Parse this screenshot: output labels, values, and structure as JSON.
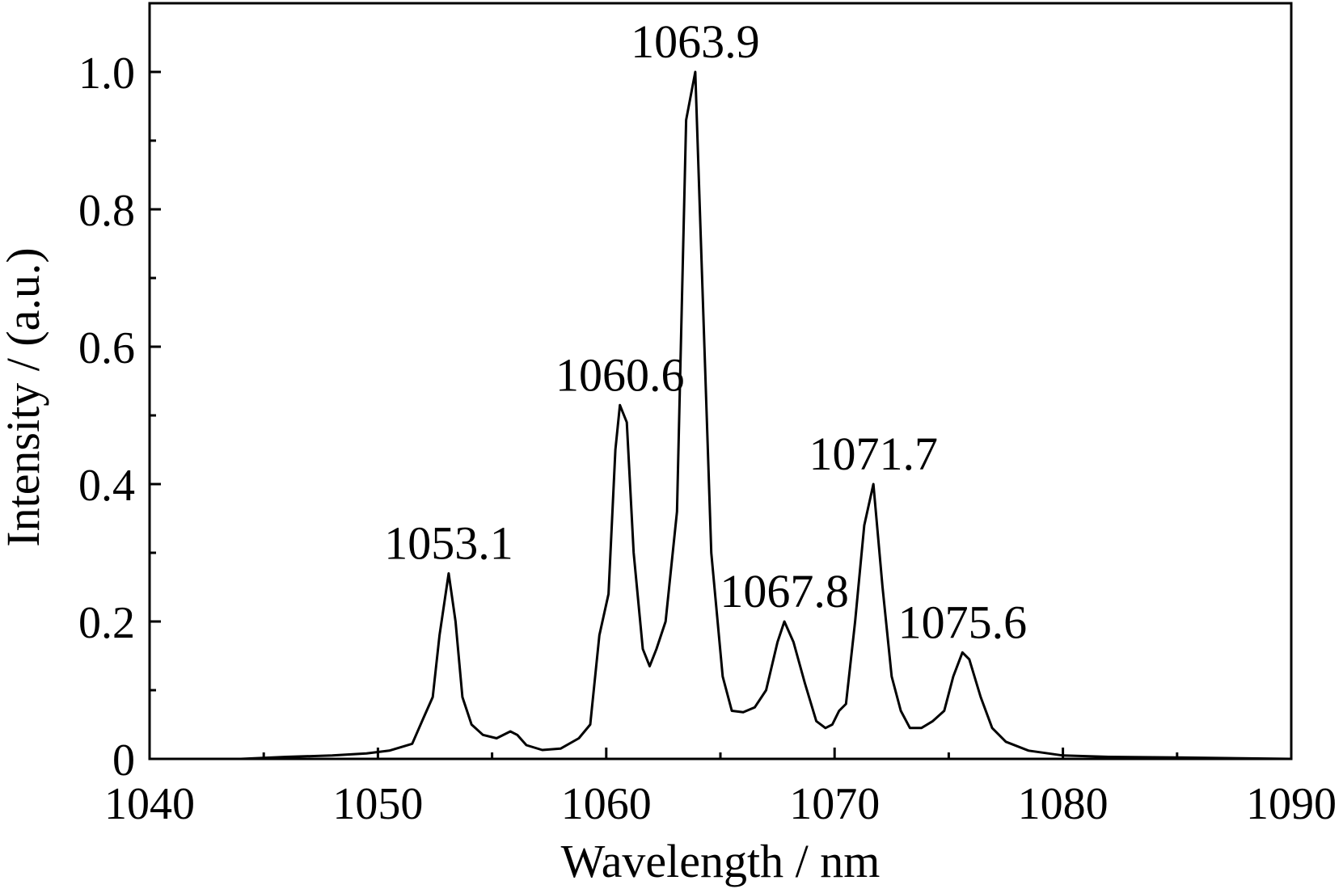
{
  "chart_data": {
    "type": "line",
    "xlabel": "Wavelength / nm",
    "ylabel": "Intensity / (a.u.)",
    "xlim": [
      1040,
      1090
    ],
    "ylim": [
      0,
      1.1
    ],
    "x_ticks": [
      1040,
      1050,
      1060,
      1070,
      1080,
      1090
    ],
    "x_tick_labels": [
      "1040",
      "1050",
      "1060",
      "1070",
      "1080",
      "1090"
    ],
    "y_ticks": [
      0,
      0.2,
      0.4,
      0.6,
      0.8,
      1.0
    ],
    "y_tick_labels": [
      "0",
      "0.2",
      "0.4",
      "0.6",
      "0.8",
      "1.0"
    ],
    "grid": false,
    "series": [
      {
        "color": "#000000",
        "points": [
          [
            1040,
            0.0
          ],
          [
            1042,
            0.0
          ],
          [
            1044,
            0.0
          ],
          [
            1046,
            0.003
          ],
          [
            1048,
            0.005
          ],
          [
            1049.5,
            0.008
          ],
          [
            1050.5,
            0.012
          ],
          [
            1051.5,
            0.022
          ],
          [
            1052.0,
            0.06
          ],
          [
            1052.4,
            0.09
          ],
          [
            1052.7,
            0.18
          ],
          [
            1053.1,
            0.27
          ],
          [
            1053.4,
            0.2
          ],
          [
            1053.7,
            0.09
          ],
          [
            1054.1,
            0.05
          ],
          [
            1054.6,
            0.035
          ],
          [
            1055.2,
            0.03
          ],
          [
            1055.8,
            0.04
          ],
          [
            1056.1,
            0.035
          ],
          [
            1056.5,
            0.02
          ],
          [
            1057.2,
            0.013
          ],
          [
            1058.0,
            0.015
          ],
          [
            1058.8,
            0.03
          ],
          [
            1059.3,
            0.05
          ],
          [
            1059.7,
            0.18
          ],
          [
            1060.1,
            0.24
          ],
          [
            1060.4,
            0.45
          ],
          [
            1060.6,
            0.515
          ],
          [
            1060.9,
            0.49
          ],
          [
            1061.2,
            0.3
          ],
          [
            1061.6,
            0.16
          ],
          [
            1061.9,
            0.135
          ],
          [
            1062.2,
            0.16
          ],
          [
            1062.6,
            0.2
          ],
          [
            1063.1,
            0.36
          ],
          [
            1063.5,
            0.93
          ],
          [
            1063.9,
            1.0
          ],
          [
            1064.3,
            0.6
          ],
          [
            1064.6,
            0.3
          ],
          [
            1065.1,
            0.12
          ],
          [
            1065.5,
            0.07
          ],
          [
            1066.0,
            0.068
          ],
          [
            1066.5,
            0.075
          ],
          [
            1067.0,
            0.1
          ],
          [
            1067.5,
            0.17
          ],
          [
            1067.8,
            0.2
          ],
          [
            1068.2,
            0.17
          ],
          [
            1068.7,
            0.11
          ],
          [
            1069.2,
            0.055
          ],
          [
            1069.6,
            0.045
          ],
          [
            1069.9,
            0.05
          ],
          [
            1070.2,
            0.07
          ],
          [
            1070.5,
            0.08
          ],
          [
            1070.9,
            0.2
          ],
          [
            1071.3,
            0.34
          ],
          [
            1071.7,
            0.4
          ],
          [
            1072.1,
            0.25
          ],
          [
            1072.5,
            0.12
          ],
          [
            1072.9,
            0.07
          ],
          [
            1073.3,
            0.045
          ],
          [
            1073.8,
            0.045
          ],
          [
            1074.3,
            0.055
          ],
          [
            1074.8,
            0.07
          ],
          [
            1075.2,
            0.12
          ],
          [
            1075.6,
            0.155
          ],
          [
            1075.9,
            0.145
          ],
          [
            1076.4,
            0.09
          ],
          [
            1076.9,
            0.045
          ],
          [
            1077.5,
            0.025
          ],
          [
            1078.5,
            0.012
          ],
          [
            1080,
            0.005
          ],
          [
            1082,
            0.003
          ],
          [
            1085,
            0.002
          ],
          [
            1090,
            0.0
          ]
        ]
      }
    ],
    "annotations": [
      {
        "text": "1053.1",
        "x": 1053.1,
        "y": 0.27
      },
      {
        "text": "1060.6",
        "x": 1060.6,
        "y": 0.515
      },
      {
        "text": "1063.9",
        "x": 1063.9,
        "y": 1.0
      },
      {
        "text": "1067.8",
        "x": 1067.8,
        "y": 0.2
      },
      {
        "text": "1071.7",
        "x": 1071.7,
        "y": 0.4
      },
      {
        "text": "1075.6",
        "x": 1075.6,
        "y": 0.155
      }
    ]
  }
}
